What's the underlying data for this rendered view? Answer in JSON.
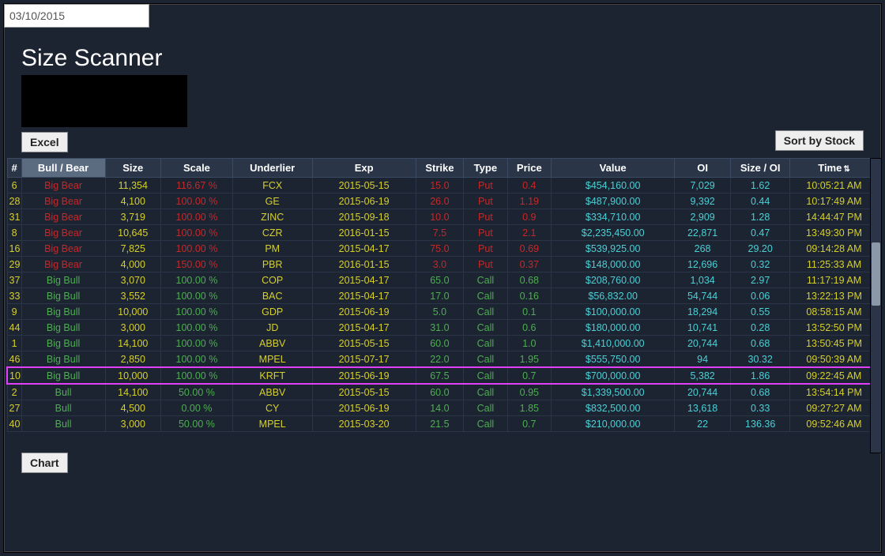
{
  "date": "03/10/2015",
  "title": "Size Scanner",
  "buttons": {
    "excel": "Excel",
    "sort": "Sort by Stock",
    "chart": "Chart"
  },
  "colors": {
    "num": "#d6d029",
    "bigbear": "#c62828",
    "bigbull": "#4caf50",
    "bull": "#4caf50",
    "size": "#d6d029",
    "scale_red": "#c62828",
    "scale_green": "#4caf50",
    "underlier": "#d6d029",
    "exp": "#d6d029",
    "strike_red": "#c62828",
    "strike_green": "#4caf50",
    "put": "#c62828",
    "call": "#4caf50",
    "price_red": "#c62828",
    "price_green": "#4caf50",
    "value": "#4bd0d6",
    "oi": "#4bd0d6",
    "sizeoi": "#4bd0d6",
    "time": "#d6d029"
  },
  "columns": [
    {
      "key": "num",
      "label": "#"
    },
    {
      "key": "bullbear",
      "label": "Bull / Bear",
      "sortable": true
    },
    {
      "key": "size",
      "label": "Size"
    },
    {
      "key": "scale",
      "label": "Scale"
    },
    {
      "key": "underlier",
      "label": "Underlier"
    },
    {
      "key": "exp",
      "label": "Exp"
    },
    {
      "key": "strike",
      "label": "Strike"
    },
    {
      "key": "type",
      "label": "Type"
    },
    {
      "key": "price",
      "label": "Price"
    },
    {
      "key": "value",
      "label": "Value"
    },
    {
      "key": "oi",
      "label": "OI"
    },
    {
      "key": "sizeoi",
      "label": "Size / OI"
    },
    {
      "key": "time",
      "label": "Time",
      "sort_indicator": "⇅"
    }
  ],
  "rows": [
    {
      "num": "6",
      "bb": "Big Bear",
      "size": "11,354",
      "scale": "116.67 %",
      "ul": "FCX",
      "exp": "2015-05-15",
      "strike": "15.0",
      "type": "Put",
      "price": "0.4",
      "value": "$454,160.00",
      "oi": "7,029",
      "soi": "1.62",
      "time": "10:05:21 AM"
    },
    {
      "num": "28",
      "bb": "Big Bear",
      "size": "4,100",
      "scale": "100.00 %",
      "ul": "GE",
      "exp": "2015-06-19",
      "strike": "26.0",
      "type": "Put",
      "price": "1.19",
      "value": "$487,900.00",
      "oi": "9,392",
      "soi": "0.44",
      "time": "10:17:49 AM"
    },
    {
      "num": "31",
      "bb": "Big Bear",
      "size": "3,719",
      "scale": "100.00 %",
      "ul": "ZINC",
      "exp": "2015-09-18",
      "strike": "10.0",
      "type": "Put",
      "price": "0.9",
      "value": "$334,710.00",
      "oi": "2,909",
      "soi": "1.28",
      "time": "14:44:47 PM"
    },
    {
      "num": "8",
      "bb": "Big Bear",
      "size": "10,645",
      "scale": "100.00 %",
      "ul": "CZR",
      "exp": "2016-01-15",
      "strike": "7.5",
      "type": "Put",
      "price": "2.1",
      "value": "$2,235,450.00",
      "oi": "22,871",
      "soi": "0.47",
      "time": "13:49:30 PM"
    },
    {
      "num": "16",
      "bb": "Big Bear",
      "size": "7,825",
      "scale": "100.00 %",
      "ul": "PM",
      "exp": "2015-04-17",
      "strike": "75.0",
      "type": "Put",
      "price": "0.69",
      "value": "$539,925.00",
      "oi": "268",
      "soi": "29.20",
      "time": "09:14:28 AM"
    },
    {
      "num": "29",
      "bb": "Big Bear",
      "size": "4,000",
      "scale": "150.00 %",
      "ul": "PBR",
      "exp": "2016-01-15",
      "strike": "3.0",
      "type": "Put",
      "price": "0.37",
      "value": "$148,000.00",
      "oi": "12,696",
      "soi": "0.32",
      "time": "11:25:33 AM"
    },
    {
      "num": "37",
      "bb": "Big Bull",
      "size": "3,070",
      "scale": "100.00 %",
      "ul": "COP",
      "exp": "2015-04-17",
      "strike": "65.0",
      "type": "Call",
      "price": "0.68",
      "value": "$208,760.00",
      "oi": "1,034",
      "soi": "2.97",
      "time": "11:17:19 AM"
    },
    {
      "num": "33",
      "bb": "Big Bull",
      "size": "3,552",
      "scale": "100.00 %",
      "ul": "BAC",
      "exp": "2015-04-17",
      "strike": "17.0",
      "type": "Call",
      "price": "0.16",
      "value": "$56,832.00",
      "oi": "54,744",
      "soi": "0.06",
      "time": "13:22:13 PM"
    },
    {
      "num": "9",
      "bb": "Big Bull",
      "size": "10,000",
      "scale": "100.00 %",
      "ul": "GDP",
      "exp": "2015-06-19",
      "strike": "5.0",
      "type": "Call",
      "price": "0.1",
      "value": "$100,000.00",
      "oi": "18,294",
      "soi": "0.55",
      "time": "08:58:15 AM"
    },
    {
      "num": "44",
      "bb": "Big Bull",
      "size": "3,000",
      "scale": "100.00 %",
      "ul": "JD",
      "exp": "2015-04-17",
      "strike": "31.0",
      "type": "Call",
      "price": "0.6",
      "value": "$180,000.00",
      "oi": "10,741",
      "soi": "0.28",
      "time": "13:52:50 PM"
    },
    {
      "num": "1",
      "bb": "Big Bull",
      "size": "14,100",
      "scale": "100.00 %",
      "ul": "ABBV",
      "exp": "2015-05-15",
      "strike": "60.0",
      "type": "Call",
      "price": "1.0",
      "value": "$1,410,000.00",
      "oi": "20,744",
      "soi": "0.68",
      "time": "13:50:45 PM"
    },
    {
      "num": "46",
      "bb": "Big Bull",
      "size": "2,850",
      "scale": "100.00 %",
      "ul": "MPEL",
      "exp": "2015-07-17",
      "strike": "22.0",
      "type": "Call",
      "price": "1.95",
      "value": "$555,750.00",
      "oi": "94",
      "soi": "30.32",
      "time": "09:50:39 AM"
    },
    {
      "num": "10",
      "bb": "Big Bull",
      "size": "10,000",
      "scale": "100.00 %",
      "ul": "KRFT",
      "exp": "2015-06-19",
      "strike": "67.5",
      "type": "Call",
      "price": "0.7",
      "value": "$700,000.00",
      "oi": "5,382",
      "soi": "1.86",
      "time": "09:22:45 AM",
      "highlight": true
    },
    {
      "num": "2",
      "bb": "Bull",
      "size": "14,100",
      "scale": "50.00 %",
      "ul": "ABBV",
      "exp": "2015-05-15",
      "strike": "60.0",
      "type": "Call",
      "price": "0.95",
      "value": "$1,339,500.00",
      "oi": "20,744",
      "soi": "0.68",
      "time": "13:54:14 PM"
    },
    {
      "num": "27",
      "bb": "Bull",
      "size": "4,500",
      "scale": "0.00 %",
      "ul": "CY",
      "exp": "2015-06-19",
      "strike": "14.0",
      "type": "Call",
      "price": "1.85",
      "value": "$832,500.00",
      "oi": "13,618",
      "soi": "0.33",
      "time": "09:27:27 AM"
    },
    {
      "num": "40",
      "bb": "Bull",
      "size": "3,000",
      "scale": "50.00 %",
      "ul": "MPEL",
      "exp": "2015-03-20",
      "strike": "21.5",
      "type": "Call",
      "price": "0.7",
      "value": "$210,000.00",
      "oi": "22",
      "soi": "136.36",
      "time": "09:52:46 AM"
    }
  ]
}
